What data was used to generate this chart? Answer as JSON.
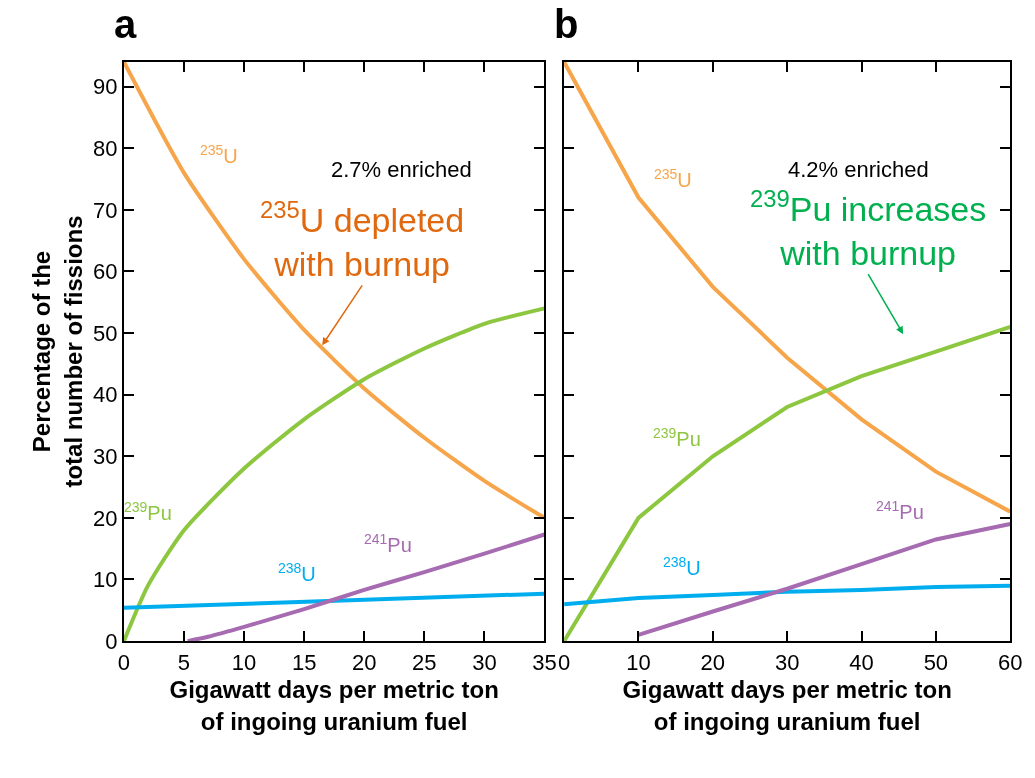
{
  "chart_data": [
    {
      "type": "line",
      "title": "a",
      "xlabel": "Gigawatt days per metric ton\nof ingoing uranium fuel",
      "ylabel": "Percentage of the\ntotal number of fissions",
      "xlim": [
        0,
        35
      ],
      "xticks": [
        0,
        5,
        10,
        15,
        20,
        25,
        30,
        35
      ],
      "ylim": [
        0,
        94
      ],
      "yticks": [
        0,
        10,
        20,
        30,
        40,
        50,
        60,
        70,
        80,
        90
      ],
      "marker": "none",
      "line_style": "solid",
      "annotations": [
        "2.7% enriched",
        {
          "text": "$^{235}$U depleted\nwith burnup",
          "x": 16.5,
          "y": 48
        }
      ],
      "series": [
        {
          "name": "$^{235}$U",
          "color": "#f7a54a",
          "x": [
            0,
            5,
            10,
            15,
            20,
            25,
            30,
            35
          ],
          "values": [
            94,
            76,
            62,
            50.5,
            41,
            33,
            26,
            20
          ]
        },
        {
          "name": "$^{239}$Pu",
          "color": "#8dc63f",
          "x": [
            0,
            2,
            5,
            10,
            15,
            20,
            25,
            30,
            35
          ],
          "values": [
            0,
            9,
            18,
            28,
            36,
            42.5,
            47.5,
            51.5,
            54
          ]
        },
        {
          "name": "$^{238}$U",
          "color": "#00aeef",
          "x": [
            0,
            17,
            35
          ],
          "values": [
            5.4,
            6.5,
            7.7
          ]
        },
        {
          "name": "$^{241}$Pu",
          "color": "#a66bb0",
          "x": [
            5.3,
            7,
            10,
            15,
            20,
            25,
            30,
            35
          ],
          "values": [
            0,
            0.7,
            2.3,
            5.2,
            8.3,
            11.2,
            14.2,
            17.3
          ]
        }
      ]
    },
    {
      "type": "line",
      "title": "b",
      "xlabel": "Gigawatt days per metric ton\nof ingoing uranium fuel",
      "xlim": [
        0,
        60
      ],
      "xticks": [
        0,
        10,
        20,
        30,
        40,
        50,
        60
      ],
      "ylim": [
        0,
        94
      ],
      "yticks": [
        0,
        10,
        20,
        30,
        40,
        50,
        60,
        70,
        80,
        90
      ],
      "tick_labels": "x",
      "marker": "none",
      "line_style": "solid",
      "annotations": [
        "4.2% enriched",
        "$^{239}$Pu increases\nwith burnup"
      ],
      "series": [
        {
          "name": "$^{235}$U",
          "color": "#f7a54a",
          "x": [
            0,
            10,
            20,
            30,
            40,
            50,
            60
          ],
          "values": [
            94,
            72,
            57.5,
            46,
            36,
            27.5,
            21
          ]
        },
        {
          "name": "$^{239}$Pu",
          "color": "#8dc63f",
          "x": [
            0,
            10,
            20,
            30,
            40,
            50,
            60
          ],
          "values": [
            0,
            20,
            30,
            38,
            43,
            47,
            51
          ]
        },
        {
          "name": "$^{238}$U",
          "color": "#00aeef",
          "x": [
            0,
            10,
            20,
            30,
            40,
            50,
            60
          ],
          "values": [
            6,
            7,
            7.5,
            8,
            8.3,
            8.8,
            9
          ]
        },
        {
          "name": "$^{241}$Pu",
          "color": "#a66bb0",
          "x": [
            10,
            20,
            30,
            40,
            50,
            60
          ],
          "values": [
            1,
            4.8,
            8.5,
            12.5,
            16.5,
            19
          ]
        }
      ]
    }
  ]
}
